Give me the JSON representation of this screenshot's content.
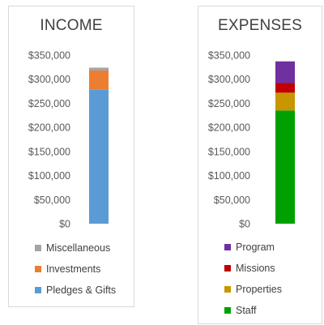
{
  "chart_data": [
    {
      "type": "bar",
      "title": "INCOME",
      "ylim": [
        0,
        350000
      ],
      "y_ticks": [
        "$0",
        "$50,000",
        "$100,000",
        "$150,000",
        "$200,000",
        "$250,000",
        "$300,000",
        "$350,000"
      ],
      "grid": false,
      "legend_position": "bottom",
      "stacked": true,
      "series": [
        {
          "name": "Pledges & Gifts",
          "values": [
            278000
          ],
          "color": "#5b9bd5"
        },
        {
          "name": "Investments",
          "values": [
            40000
          ],
          "color": "#ed7d31"
        },
        {
          "name": "Miscellaneous",
          "values": [
            6000
          ],
          "color": "#a5a5a5"
        }
      ]
    },
    {
      "type": "bar",
      "title": "EXPENSES",
      "ylim": [
        0,
        350000
      ],
      "y_ticks": [
        "$0",
        "$50,000",
        "$100,000",
        "$150,000",
        "$200,000",
        "$250,000",
        "$300,000",
        "$350,000"
      ],
      "grid": false,
      "legend_position": "bottom",
      "stacked": true,
      "series": [
        {
          "name": "Staff",
          "values": [
            235000
          ],
          "color": "#00a000"
        },
        {
          "name": "Properties",
          "values": [
            37000
          ],
          "color": "#c89600"
        },
        {
          "name": "Missions",
          "values": [
            20000
          ],
          "color": "#c00000"
        },
        {
          "name": "Program",
          "values": [
            45000
          ],
          "color": "#7030a0"
        }
      ]
    }
  ]
}
